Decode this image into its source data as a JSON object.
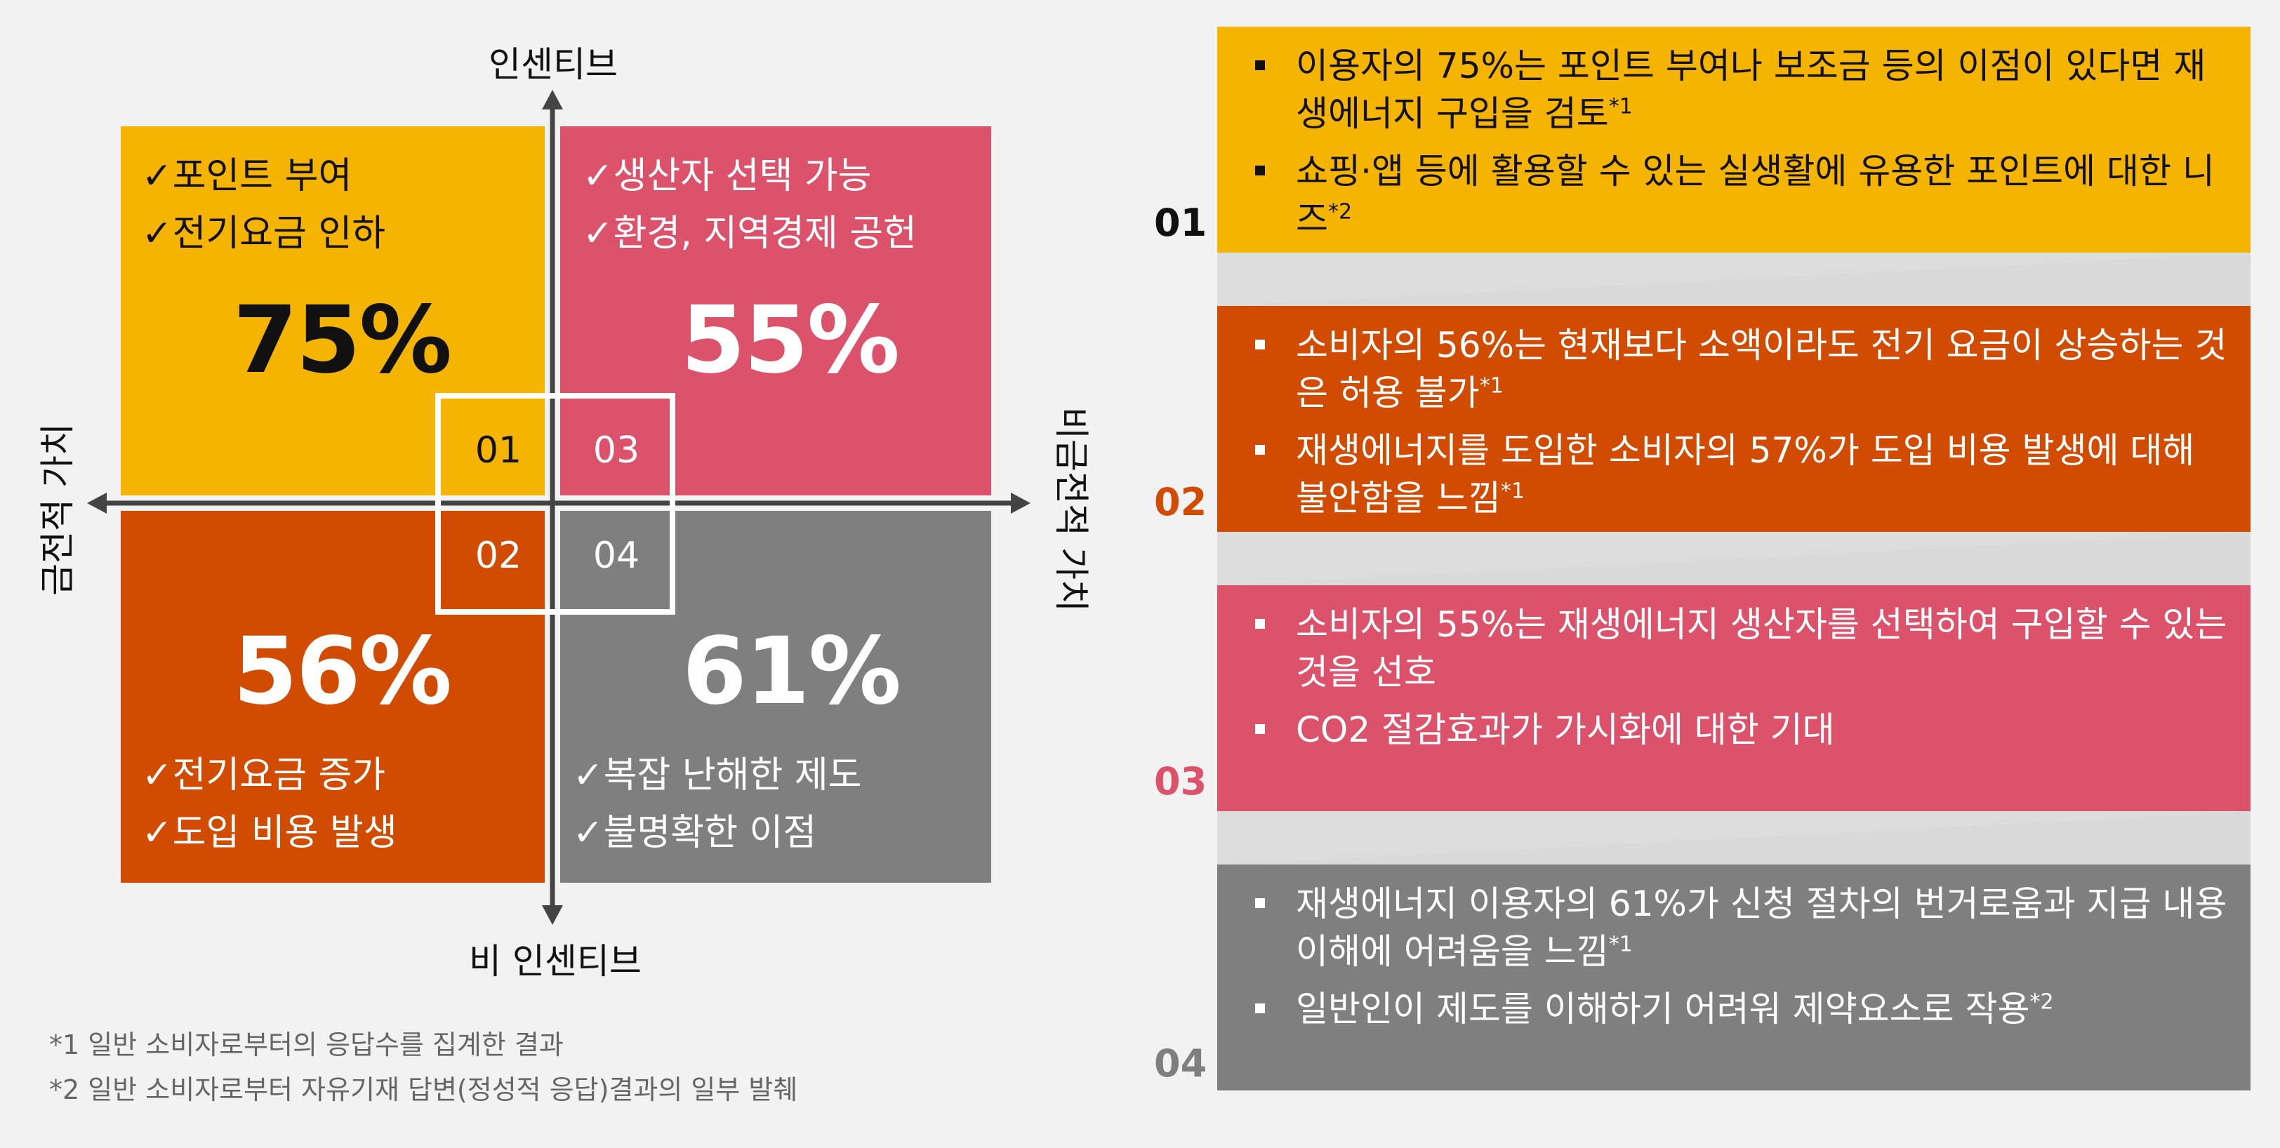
{
  "axes": {
    "top": "인센티브",
    "bottom": "비 인센티브",
    "left": "금전적 가치",
    "right": "비금전적 가치"
  },
  "quadrants": [
    {
      "id": "01",
      "percent": "75%",
      "items": [
        "✓포인트 부여",
        "✓전기요금 인하"
      ],
      "color": "#f5b400"
    },
    {
      "id": "03",
      "percent": "55%",
      "items": [
        "✓생산자 선택 가능",
        "✓환경, 지역경제  공헌"
      ],
      "color": "#dd526b"
    },
    {
      "id": "02",
      "percent": "56%",
      "items": [
        "✓전기요금 증가",
        "✓도입 비용 발생"
      ],
      "color": "#d14b00"
    },
    {
      "id": "04",
      "percent": "61%",
      "items": [
        "✓복잡 난해한 제도",
        "✓불명확한 이점"
      ],
      "color": "#7f7f7f"
    }
  ],
  "footnotes": [
    "*1 일반 소비자로부터의 응답수를 집계한 결과",
    "*2 일반 소비자로부터 자유기재 답변(정성적 응답)결과의 일부 발췌"
  ],
  "panels": [
    {
      "num": "01",
      "num_color": "#111111",
      "bullets": [
        {
          "text": "이용자의 75%는 포인트 부여나 보조금 등의 이점이 있다면 재생에너지 구입을 검토",
          "sup": "*1"
        },
        {
          "text": "쇼핑·앱 등에 활용할 수 있는 실생활에 유용한 포인트에 대한 니즈",
          "sup": "*2"
        }
      ]
    },
    {
      "num": "02",
      "num_color": "#d14b00",
      "bullets": [
        {
          "text": "소비자의 56%는 현재보다 소액이라도 전기 요금이 상승하는 것은 허용 불가",
          "sup": "*1"
        },
        {
          "text": "재생에너지를 도입한 소비자의 57%가 도입 비용 발생에 대해 불안함을 느낌",
          "sup": "*1"
        }
      ]
    },
    {
      "num": "03",
      "num_color": "#dd526b",
      "bullets": [
        {
          "text": "소비자의 55%는 재생에너지 생산자를 선택하여 구입할 수 있는 것을 선호",
          "sup": ""
        },
        {
          "text": "CO2 절감효과가 가시화에 대한 기대",
          "sup": ""
        }
      ]
    },
    {
      "num": "04",
      "num_color": "#7f7f7f",
      "bullets": [
        {
          "text": "재생에너지 이용자의 61%가 신청 절차의 번거로움과 지급 내용 이해에 어려움을 느낌",
          "sup": "*1"
        },
        {
          "text": "일반인이 제도를 이해하기 어려워 제약요소로 작용",
          "sup": "*2"
        }
      ]
    }
  ]
}
